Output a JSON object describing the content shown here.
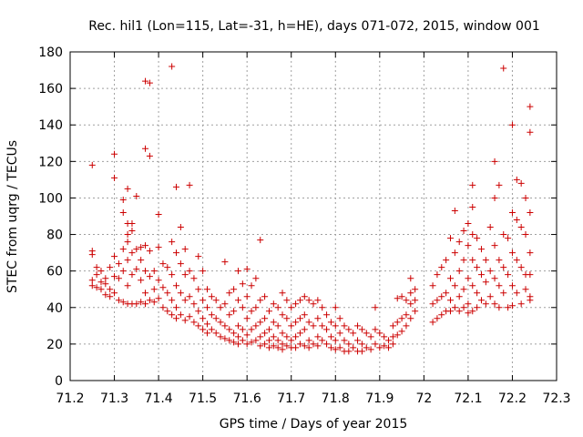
{
  "chart_data": {
    "type": "scatter",
    "title": "Rec. hil1 (Lon=115, Lat=-31, h=HE), days 071-072, 2015, window 001",
    "xlabel": "GPS time / Days of year 2015",
    "ylabel": "STEC from uqrg / TECUs",
    "xlim": [
      71.2,
      72.3
    ],
    "ylim": [
      0,
      180
    ],
    "xticks": [
      "71.2",
      "71.3",
      "71.4",
      "71.5",
      "71.6",
      "71.7",
      "71.8",
      "71.9",
      "72",
      "72.1",
      "72.2",
      "72.3"
    ],
    "yticks": [
      "0",
      "20",
      "40",
      "60",
      "80",
      "100",
      "120",
      "140",
      "160",
      "180"
    ],
    "grid": true,
    "marker": "+",
    "color": "#cc0000",
    "points": [
      [
        71.25,
        118
      ],
      [
        71.25,
        71
      ],
      [
        71.25,
        69
      ],
      [
        71.25,
        55
      ],
      [
        71.25,
        52
      ],
      [
        71.26,
        62
      ],
      [
        71.26,
        58
      ],
      [
        71.26,
        51
      ],
      [
        71.27,
        60
      ],
      [
        71.27,
        54
      ],
      [
        71.27,
        50
      ],
      [
        71.28,
        56
      ],
      [
        71.28,
        53
      ],
      [
        71.28,
        47
      ],
      [
        71.29,
        62
      ],
      [
        71.29,
        50
      ],
      [
        71.29,
        46
      ],
      [
        71.3,
        124
      ],
      [
        71.3,
        111
      ],
      [
        71.3,
        68
      ],
      [
        71.3,
        57
      ],
      [
        71.3,
        48
      ],
      [
        71.31,
        64
      ],
      [
        71.31,
        56
      ],
      [
        71.31,
        44
      ],
      [
        71.32,
        99
      ],
      [
        71.32,
        92
      ],
      [
        71.32,
        72
      ],
      [
        71.32,
        60
      ],
      [
        71.32,
        43
      ],
      [
        71.33,
        105
      ],
      [
        71.33,
        86
      ],
      [
        71.33,
        80
      ],
      [
        71.33,
        76
      ],
      [
        71.33,
        66
      ],
      [
        71.33,
        52
      ],
      [
        71.33,
        42
      ],
      [
        71.34,
        86
      ],
      [
        71.34,
        82
      ],
      [
        71.34,
        70
      ],
      [
        71.34,
        58
      ],
      [
        71.34,
        42
      ],
      [
        71.35,
        101
      ],
      [
        71.35,
        72
      ],
      [
        71.35,
        61
      ],
      [
        71.35,
        42
      ],
      [
        71.36,
        73
      ],
      [
        71.36,
        66
      ],
      [
        71.36,
        55
      ],
      [
        71.36,
        43
      ],
      [
        71.37,
        127
      ],
      [
        71.37,
        164
      ],
      [
        71.37,
        74
      ],
      [
        71.37,
        60
      ],
      [
        71.37,
        48
      ],
      [
        71.37,
        42
      ],
      [
        71.38,
        163
      ],
      [
        71.38,
        123
      ],
      [
        71.38,
        71
      ],
      [
        71.38,
        57
      ],
      [
        71.38,
        44
      ],
      [
        71.39,
        60
      ],
      [
        71.39,
        50
      ],
      [
        71.39,
        43
      ],
      [
        71.4,
        91
      ],
      [
        71.4,
        73
      ],
      [
        71.4,
        55
      ],
      [
        71.4,
        45
      ],
      [
        71.41,
        64
      ],
      [
        71.41,
        51
      ],
      [
        71.41,
        40
      ],
      [
        71.42,
        62
      ],
      [
        71.42,
        48
      ],
      [
        71.42,
        38
      ],
      [
        71.43,
        172
      ],
      [
        71.43,
        76
      ],
      [
        71.43,
        58
      ],
      [
        71.43,
        44
      ],
      [
        71.43,
        36
      ],
      [
        71.44,
        106
      ],
      [
        71.44,
        70
      ],
      [
        71.44,
        52
      ],
      [
        71.44,
        40
      ],
      [
        71.44,
        34
      ],
      [
        71.45,
        84
      ],
      [
        71.45,
        64
      ],
      [
        71.45,
        48
      ],
      [
        71.45,
        36
      ],
      [
        71.46,
        72
      ],
      [
        71.46,
        58
      ],
      [
        71.46,
        44
      ],
      [
        71.46,
        33
      ],
      [
        71.47,
        107
      ],
      [
        71.47,
        60
      ],
      [
        71.47,
        46
      ],
      [
        71.47,
        35
      ],
      [
        71.48,
        56
      ],
      [
        71.48,
        42
      ],
      [
        71.48,
        32
      ],
      [
        71.49,
        68
      ],
      [
        71.49,
        50
      ],
      [
        71.49,
        38
      ],
      [
        71.49,
        30
      ],
      [
        71.5,
        60
      ],
      [
        71.5,
        44
      ],
      [
        71.5,
        34
      ],
      [
        71.5,
        28
      ],
      [
        71.51,
        50
      ],
      [
        71.51,
        40
      ],
      [
        71.51,
        31
      ],
      [
        71.51,
        26
      ],
      [
        71.52,
        46
      ],
      [
        71.52,
        36
      ],
      [
        71.52,
        28
      ],
      [
        71.53,
        44
      ],
      [
        71.53,
        34
      ],
      [
        71.53,
        26
      ],
      [
        71.54,
        40
      ],
      [
        71.54,
        32
      ],
      [
        71.54,
        24
      ],
      [
        71.55,
        65
      ],
      [
        71.55,
        42
      ],
      [
        71.55,
        30
      ],
      [
        71.55,
        23
      ],
      [
        71.56,
        48
      ],
      [
        71.56,
        36
      ],
      [
        71.56,
        28
      ],
      [
        71.56,
        22
      ],
      [
        71.57,
        50
      ],
      [
        71.57,
        38
      ],
      [
        71.57,
        26
      ],
      [
        71.57,
        21
      ],
      [
        71.58,
        60
      ],
      [
        71.58,
        44
      ],
      [
        71.58,
        30
      ],
      [
        71.58,
        24
      ],
      [
        71.58,
        20
      ],
      [
        71.59,
        53
      ],
      [
        71.59,
        40
      ],
      [
        71.59,
        28
      ],
      [
        71.59,
        22
      ],
      [
        71.6,
        61
      ],
      [
        71.6,
        46
      ],
      [
        71.6,
        34
      ],
      [
        71.6,
        25
      ],
      [
        71.6,
        20
      ],
      [
        71.61,
        52
      ],
      [
        71.61,
        38
      ],
      [
        71.61,
        28
      ],
      [
        71.61,
        21
      ],
      [
        71.62,
        56
      ],
      [
        71.62,
        40
      ],
      [
        71.62,
        30
      ],
      [
        71.62,
        22
      ],
      [
        71.63,
        77
      ],
      [
        71.63,
        44
      ],
      [
        71.63,
        32
      ],
      [
        71.63,
        24
      ],
      [
        71.63,
        19
      ],
      [
        71.64,
        46
      ],
      [
        71.64,
        34
      ],
      [
        71.64,
        26
      ],
      [
        71.64,
        20
      ],
      [
        71.65,
        38
      ],
      [
        71.65,
        28
      ],
      [
        71.65,
        22
      ],
      [
        71.65,
        18
      ],
      [
        71.66,
        42
      ],
      [
        71.66,
        32
      ],
      [
        71.66,
        24
      ],
      [
        71.66,
        19
      ],
      [
        71.67,
        40
      ],
      [
        71.67,
        30
      ],
      [
        71.67,
        22
      ],
      [
        71.67,
        18
      ],
      [
        71.68,
        48
      ],
      [
        71.68,
        36
      ],
      [
        71.68,
        26
      ],
      [
        71.68,
        20
      ],
      [
        71.68,
        17
      ],
      [
        71.69,
        44
      ],
      [
        71.69,
        34
      ],
      [
        71.69,
        24
      ],
      [
        71.69,
        19
      ],
      [
        71.7,
        40
      ],
      [
        71.7,
        30
      ],
      [
        71.7,
        22
      ],
      [
        71.7,
        18
      ],
      [
        71.71,
        42
      ],
      [
        71.71,
        32
      ],
      [
        71.71,
        24
      ],
      [
        71.71,
        18
      ],
      [
        71.72,
        44
      ],
      [
        71.72,
        34
      ],
      [
        71.72,
        26
      ],
      [
        71.72,
        20
      ],
      [
        71.73,
        46
      ],
      [
        71.73,
        36
      ],
      [
        71.73,
        28
      ],
      [
        71.73,
        19
      ],
      [
        71.74,
        44
      ],
      [
        71.74,
        32
      ],
      [
        71.74,
        22
      ],
      [
        71.74,
        18
      ],
      [
        71.75,
        42
      ],
      [
        71.75,
        30
      ],
      [
        71.75,
        20
      ],
      [
        71.76,
        44
      ],
      [
        71.76,
        34
      ],
      [
        71.76,
        24
      ],
      [
        71.76,
        19
      ],
      [
        71.77,
        40
      ],
      [
        71.77,
        30
      ],
      [
        71.77,
        22
      ],
      [
        71.78,
        36
      ],
      [
        71.78,
        28
      ],
      [
        71.78,
        20
      ],
      [
        71.79,
        32
      ],
      [
        71.79,
        24
      ],
      [
        71.79,
        18
      ],
      [
        71.8,
        40
      ],
      [
        71.8,
        30
      ],
      [
        71.8,
        22
      ],
      [
        71.8,
        17
      ],
      [
        71.81,
        34
      ],
      [
        71.81,
        26
      ],
      [
        71.81,
        18
      ],
      [
        71.82,
        30
      ],
      [
        71.82,
        22
      ],
      [
        71.82,
        16
      ],
      [
        71.83,
        28
      ],
      [
        71.83,
        20
      ],
      [
        71.83,
        16
      ],
      [
        71.84,
        26
      ],
      [
        71.84,
        18
      ],
      [
        71.85,
        30
      ],
      [
        71.85,
        22
      ],
      [
        71.85,
        16
      ],
      [
        71.86,
        28
      ],
      [
        71.86,
        20
      ],
      [
        71.86,
        16
      ],
      [
        71.87,
        26
      ],
      [
        71.87,
        18
      ],
      [
        71.88,
        24
      ],
      [
        71.88,
        17
      ],
      [
        71.89,
        40
      ],
      [
        71.89,
        28
      ],
      [
        71.89,
        20
      ],
      [
        71.9,
        26
      ],
      [
        71.9,
        18
      ],
      [
        71.91,
        24
      ],
      [
        71.91,
        19
      ],
      [
        71.92,
        22
      ],
      [
        71.92,
        18
      ],
      [
        71.93,
        30
      ],
      [
        71.93,
        24
      ],
      [
        71.93,
        20
      ],
      [
        71.94,
        45
      ],
      [
        71.94,
        32
      ],
      [
        71.94,
        25
      ],
      [
        71.95,
        46
      ],
      [
        71.95,
        34
      ],
      [
        71.95,
        27
      ],
      [
        71.96,
        44
      ],
      [
        71.96,
        36
      ],
      [
        71.96,
        30
      ],
      [
        71.97,
        56
      ],
      [
        71.97,
        48
      ],
      [
        71.97,
        42
      ],
      [
        71.97,
        34
      ],
      [
        71.98,
        50
      ],
      [
        71.98,
        44
      ],
      [
        71.98,
        38
      ],
      [
        72.02,
        52
      ],
      [
        72.02,
        42
      ],
      [
        72.02,
        32
      ],
      [
        72.03,
        58
      ],
      [
        72.03,
        44
      ],
      [
        72.03,
        34
      ],
      [
        72.04,
        62
      ],
      [
        72.04,
        46
      ],
      [
        72.04,
        36
      ],
      [
        72.05,
        66
      ],
      [
        72.05,
        48
      ],
      [
        72.05,
        38
      ],
      [
        72.06,
        78
      ],
      [
        72.06,
        56
      ],
      [
        72.06,
        44
      ],
      [
        72.06,
        38
      ],
      [
        72.07,
        93
      ],
      [
        72.07,
        70
      ],
      [
        72.07,
        52
      ],
      [
        72.07,
        40
      ],
      [
        72.08,
        76
      ],
      [
        72.08,
        60
      ],
      [
        72.08,
        46
      ],
      [
        72.08,
        38
      ],
      [
        72.09,
        82
      ],
      [
        72.09,
        66
      ],
      [
        72.09,
        50
      ],
      [
        72.09,
        40
      ],
      [
        72.1,
        86
      ],
      [
        72.1,
        74
      ],
      [
        72.1,
        56
      ],
      [
        72.1,
        42
      ],
      [
        72.1,
        37
      ],
      [
        72.11,
        107
      ],
      [
        72.11,
        95
      ],
      [
        72.11,
        80
      ],
      [
        72.11,
        66
      ],
      [
        72.11,
        52
      ],
      [
        72.11,
        38
      ],
      [
        72.12,
        78
      ],
      [
        72.12,
        62
      ],
      [
        72.12,
        48
      ],
      [
        72.12,
        40
      ],
      [
        72.13,
        72
      ],
      [
        72.13,
        58
      ],
      [
        72.13,
        44
      ],
      [
        72.14,
        66
      ],
      [
        72.14,
        54
      ],
      [
        72.14,
        42
      ],
      [
        72.15,
        84
      ],
      [
        72.15,
        60
      ],
      [
        72.15,
        46
      ],
      [
        72.16,
        120
      ],
      [
        72.16,
        100
      ],
      [
        72.16,
        74
      ],
      [
        72.16,
        56
      ],
      [
        72.16,
        42
      ],
      [
        72.17,
        107
      ],
      [
        72.17,
        66
      ],
      [
        72.17,
        52
      ],
      [
        72.17,
        40
      ],
      [
        72.18,
        171
      ],
      [
        72.18,
        80
      ],
      [
        72.18,
        62
      ],
      [
        72.18,
        48
      ],
      [
        72.19,
        78
      ],
      [
        72.19,
        58
      ],
      [
        72.19,
        40
      ],
      [
        72.2,
        140
      ],
      [
        72.2,
        92
      ],
      [
        72.2,
        70
      ],
      [
        72.2,
        52
      ],
      [
        72.2,
        41
      ],
      [
        72.21,
        110
      ],
      [
        72.21,
        88
      ],
      [
        72.21,
        66
      ],
      [
        72.21,
        48
      ],
      [
        72.22,
        108
      ],
      [
        72.22,
        84
      ],
      [
        72.22,
        62
      ],
      [
        72.22,
        42
      ],
      [
        72.23,
        100
      ],
      [
        72.23,
        80
      ],
      [
        72.23,
        58
      ],
      [
        72.23,
        50
      ],
      [
        72.24,
        150
      ],
      [
        72.24,
        136
      ],
      [
        72.24,
        92
      ],
      [
        72.24,
        70
      ],
      [
        72.24,
        58
      ],
      [
        72.24,
        46
      ],
      [
        72.24,
        44
      ]
    ]
  }
}
